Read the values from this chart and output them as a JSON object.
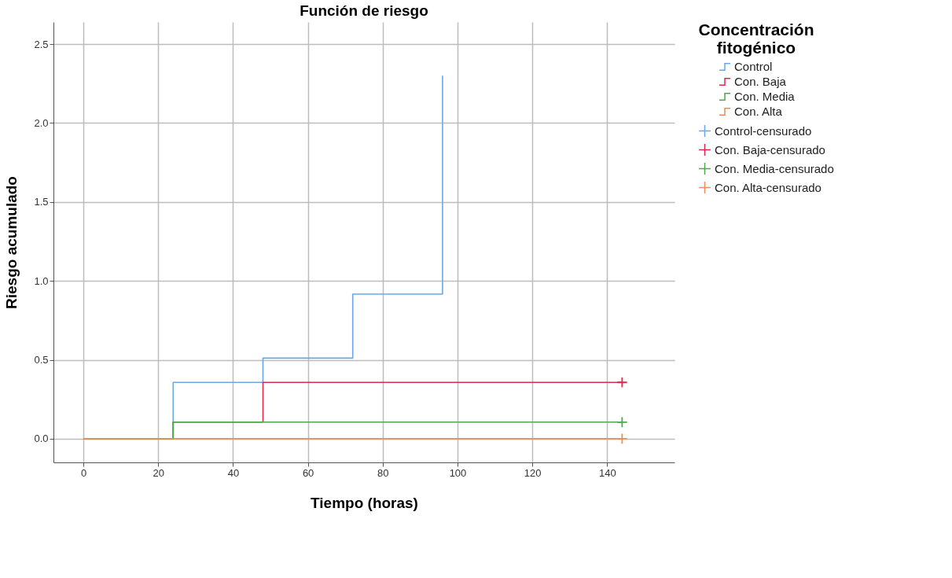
{
  "chart_data": {
    "type": "step",
    "title": "Función de riesgo",
    "xlabel": "Tiempo (horas)",
    "ylabel": "Riesgo acumulado",
    "legend_title": "Concentración fitogénico",
    "xlim": [
      -8,
      158
    ],
    "xticks": [
      0,
      20,
      40,
      60,
      80,
      100,
      120,
      140
    ],
    "ylim": [
      -0.15,
      2.64
    ],
    "yticks": [
      {
        "value": 0,
        "label": "0.0"
      },
      {
        "value": 0.5,
        "label": "0.5"
      },
      {
        "value": 1,
        "label": "1.0"
      },
      {
        "value": 1.5,
        "label": "1.5"
      },
      {
        "value": 2,
        "label": "2.0"
      },
      {
        "value": 2.5,
        "label": "2.5"
      }
    ],
    "grid": true,
    "legend": "top right",
    "series": [
      {
        "name": "Control",
        "type": "step",
        "color": "#6ca6e8",
        "x": [
          0,
          24,
          48,
          72,
          96
        ],
        "values": [
          0,
          0.357,
          0.511,
          0.916,
          2.3
        ]
      },
      {
        "name": "Con. Baja",
        "type": "step",
        "color": "#e0284f",
        "x": [
          0,
          24,
          48,
          144
        ],
        "values": [
          0,
          0.105,
          0.357,
          0.357
        ]
      },
      {
        "name": "Con. Media",
        "type": "step",
        "color": "#4ea84e",
        "x": [
          0,
          24,
          144
        ],
        "values": [
          0,
          0.105,
          0.105
        ]
      },
      {
        "name": "Con. Alta",
        "type": "step",
        "color": "#f08c5a",
        "x": [
          0,
          144
        ],
        "values": [
          0,
          0
        ]
      },
      {
        "name": "Control-censurado",
        "type": "scatter",
        "marker": "cross",
        "color": "#6ca6e8"
      },
      {
        "name": "Con. Baja-censurado",
        "type": "scatter",
        "marker": "cross",
        "color": "#e0284f",
        "x": [
          144
        ],
        "values": [
          0.357
        ]
      },
      {
        "name": "Con. Media-censurado",
        "type": "scatter",
        "marker": "cross",
        "color": "#4ea84e",
        "x": [
          144
        ],
        "values": [
          0.105
        ]
      },
      {
        "name": "Con. Alta-censurado",
        "type": "scatter",
        "marker": "cross",
        "color": "#f08c5a",
        "x": [
          144
        ],
        "values": [
          0
        ]
      }
    ]
  }
}
